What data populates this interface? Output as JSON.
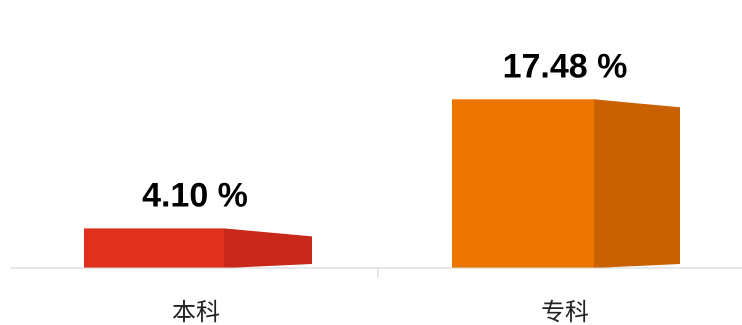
{
  "chart_data": {
    "type": "bar",
    "categories": [
      "本科",
      "专科"
    ],
    "values": [
      4.1,
      17.48
    ],
    "value_labels": [
      "4.10 %",
      "17.48 %"
    ],
    "title": "",
    "xlabel": "",
    "ylabel": "",
    "ylim": [
      0,
      20
    ],
    "grid": false,
    "legend": "none",
    "bar_style": "3d-box"
  },
  "colors": {
    "bars": [
      {
        "front": "#e0301e",
        "side": "#c8281a"
      },
      {
        "front": "#ec7500",
        "side": "#c96100"
      }
    ],
    "axis": "#d0d0d0"
  }
}
